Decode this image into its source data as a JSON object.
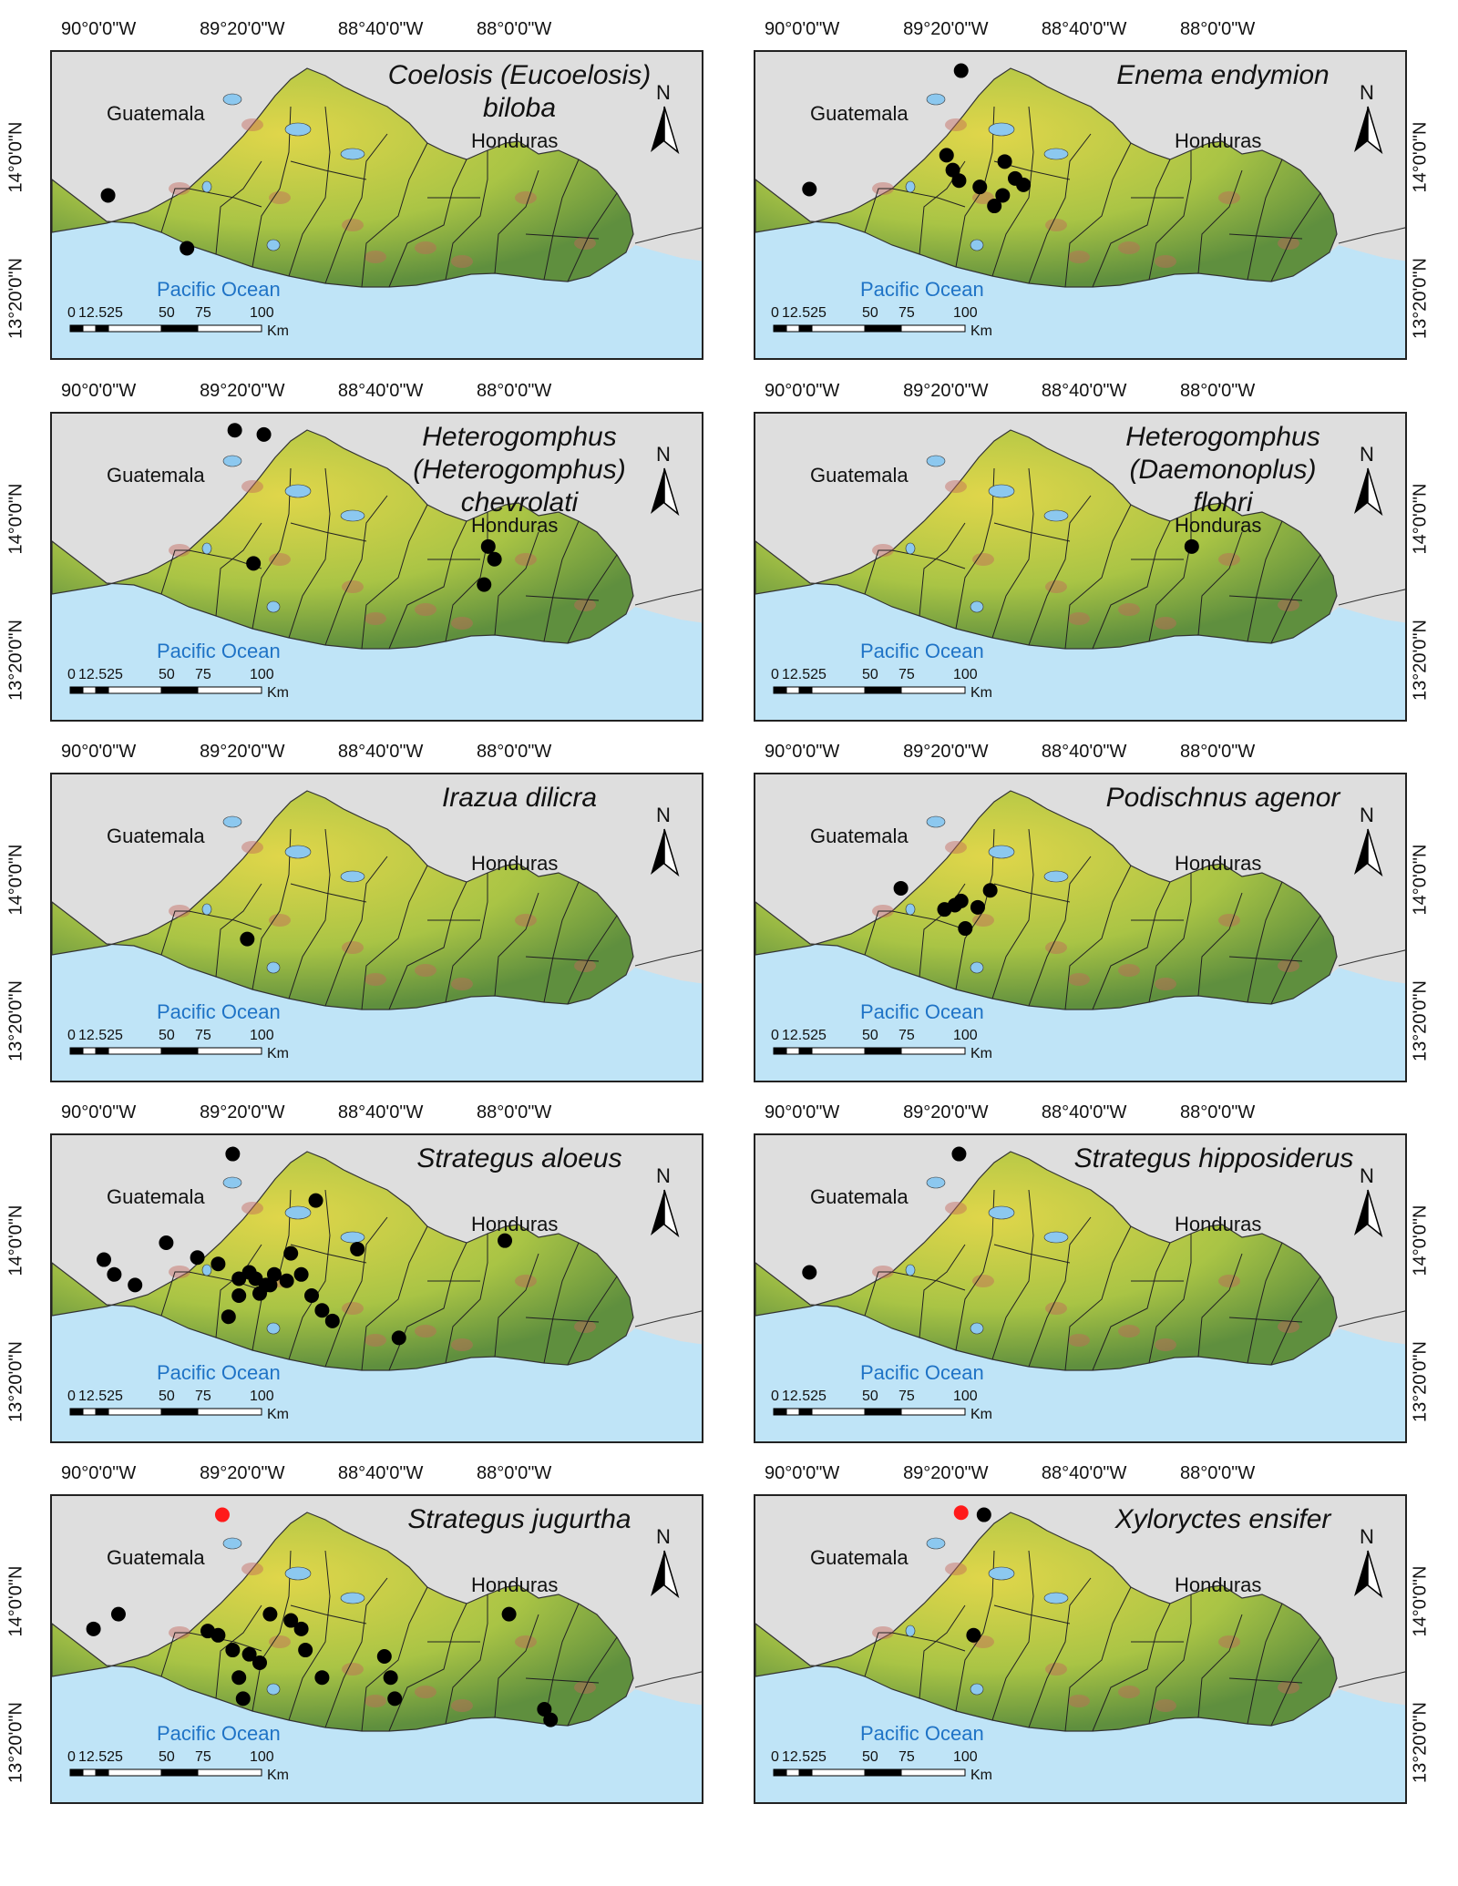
{
  "longitude_labels": [
    "90°0'0\"W",
    "89°20'0\"W",
    "88°40'0\"W",
    "88°0'0\"W"
  ],
  "latitude_labels": [
    "14°0'0\"N",
    "13°20'0\"N"
  ],
  "north_label": "N",
  "ocean_label": "Pacific Ocean",
  "scale": {
    "ticks": [
      "0",
      "12.525",
      "50",
      "75",
      "100"
    ],
    "unit": "Km"
  },
  "colors": {
    "land_low": "#5f8f3e",
    "land_high": "#e0d64a",
    "peak": "#c4665b",
    "ocean": "#bfe4f7",
    "lake": "#8cc8ef",
    "outside": "#dedede",
    "record": "#000000",
    "highlight_record": "#ff1a1a"
  },
  "panels": [
    {
      "title_lines": [
        "Coelosis (Eucoelosis)",
        "biloba"
      ],
      "countries": [
        "Guatemala",
        "Honduras"
      ],
      "records": [
        {
          "lon": -89.98,
          "lat": 13.83
        },
        {
          "lon": -89.6,
          "lat": 13.58
        }
      ]
    },
    {
      "title_lines": [
        "Enema endymion"
      ],
      "countries": [
        "Guatemala",
        "Honduras"
      ],
      "records": [
        {
          "lon": -89.26,
          "lat": 14.42
        },
        {
          "lon": -89.33,
          "lat": 14.02
        },
        {
          "lon": -89.3,
          "lat": 13.95
        },
        {
          "lon": -89.27,
          "lat": 13.9
        },
        {
          "lon": -89.17,
          "lat": 13.87
        },
        {
          "lon": -89.1,
          "lat": 13.78
        },
        {
          "lon": -89.06,
          "lat": 13.83
        },
        {
          "lon": -89.05,
          "lat": 13.99
        },
        {
          "lon": -89.0,
          "lat": 13.91
        },
        {
          "lon": -88.96,
          "lat": 13.88
        },
        {
          "lon": -89.99,
          "lat": 13.86
        }
      ]
    },
    {
      "title_lines": [
        "Heterogomphus",
        "(Heterogomphus)",
        "chevrolati"
      ],
      "countries": [
        "Guatemala",
        "Honduras"
      ],
      "records": [
        {
          "lon": -89.37,
          "lat": 14.43
        },
        {
          "lon": -89.23,
          "lat": 14.41
        },
        {
          "lon": -89.28,
          "lat": 13.8
        },
        {
          "lon": -88.15,
          "lat": 13.88
        },
        {
          "lon": -88.12,
          "lat": 13.82
        },
        {
          "lon": -88.17,
          "lat": 13.7
        }
      ]
    },
    {
      "title_lines": [
        "Heterogomphus",
        "(Daemonoplus)",
        "flohri"
      ],
      "countries": [
        "Guatemala",
        "Honduras"
      ],
      "records": [
        {
          "lon": -88.15,
          "lat": 13.88
        }
      ]
    },
    {
      "title_lines": [
        "Irazua dilicra"
      ],
      "countries": [
        "Guatemala",
        "Honduras"
      ],
      "records": [
        {
          "lon": -89.31,
          "lat": 13.73
        }
      ]
    },
    {
      "title_lines": [
        "Podischnus agenor"
      ],
      "countries": [
        "Guatemala",
        "Honduras"
      ],
      "records": [
        {
          "lon": -89.55,
          "lat": 13.97
        },
        {
          "lon": -89.34,
          "lat": 13.87
        },
        {
          "lon": -89.29,
          "lat": 13.89
        },
        {
          "lon": -89.26,
          "lat": 13.91
        },
        {
          "lon": -89.18,
          "lat": 13.88
        },
        {
          "lon": -89.12,
          "lat": 13.96
        },
        {
          "lon": -89.24,
          "lat": 13.78
        }
      ]
    },
    {
      "title_lines": [
        "Strategus aloeus"
      ],
      "countries": [
        "Guatemala",
        "Honduras"
      ],
      "records": [
        {
          "lon": -89.38,
          "lat": 14.42
        },
        {
          "lon": -89.7,
          "lat": 14.0
        },
        {
          "lon": -90.0,
          "lat": 13.92
        },
        {
          "lon": -89.95,
          "lat": 13.85
        },
        {
          "lon": -89.85,
          "lat": 13.8
        },
        {
          "lon": -89.55,
          "lat": 13.93
        },
        {
          "lon": -89.45,
          "lat": 13.9
        },
        {
          "lon": -89.35,
          "lat": 13.83
        },
        {
          "lon": -89.3,
          "lat": 13.86
        },
        {
          "lon": -89.27,
          "lat": 13.83
        },
        {
          "lon": -89.22,
          "lat": 13.8
        },
        {
          "lon": -89.25,
          "lat": 13.76
        },
        {
          "lon": -89.2,
          "lat": 13.8
        },
        {
          "lon": -89.18,
          "lat": 13.85
        },
        {
          "lon": -89.12,
          "lat": 13.82
        },
        {
          "lon": -89.1,
          "lat": 13.95
        },
        {
          "lon": -89.05,
          "lat": 13.85
        },
        {
          "lon": -89.35,
          "lat": 13.75
        },
        {
          "lon": -89.4,
          "lat": 13.65
        },
        {
          "lon": -89.0,
          "lat": 13.75
        },
        {
          "lon": -88.95,
          "lat": 13.68
        },
        {
          "lon": -88.9,
          "lat": 13.63
        },
        {
          "lon": -88.98,
          "lat": 14.2
        },
        {
          "lon": -88.78,
          "lat": 13.97
        },
        {
          "lon": -88.58,
          "lat": 13.55
        },
        {
          "lon": -88.07,
          "lat": 14.01
        }
      ]
    },
    {
      "title_lines": [
        "Strategus hipposiderus"
      ],
      "countries": [
        "Guatemala",
        "Honduras"
      ],
      "records": [
        {
          "lon": -89.27,
          "lat": 14.42
        },
        {
          "lon": -89.99,
          "lat": 13.86
        }
      ]
    },
    {
      "title_lines": [
        "Strategus jugurtha"
      ],
      "countries": [
        "Guatemala",
        "Honduras"
      ],
      "records": [
        {
          "lon": -89.43,
          "lat": 14.42,
          "highlight": true
        },
        {
          "lon": -89.93,
          "lat": 13.95
        },
        {
          "lon": -90.05,
          "lat": 13.88
        },
        {
          "lon": -89.5,
          "lat": 13.87
        },
        {
          "lon": -89.45,
          "lat": 13.85
        },
        {
          "lon": -89.38,
          "lat": 13.78
        },
        {
          "lon": -89.3,
          "lat": 13.76
        },
        {
          "lon": -89.25,
          "lat": 13.72
        },
        {
          "lon": -89.35,
          "lat": 13.65
        },
        {
          "lon": -89.2,
          "lat": 13.95
        },
        {
          "lon": -89.1,
          "lat": 13.92
        },
        {
          "lon": -89.05,
          "lat": 13.88
        },
        {
          "lon": -89.03,
          "lat": 13.78
        },
        {
          "lon": -88.95,
          "lat": 13.65
        },
        {
          "lon": -89.33,
          "lat": 13.55
        },
        {
          "lon": -88.65,
          "lat": 13.75
        },
        {
          "lon": -88.62,
          "lat": 13.65
        },
        {
          "lon": -88.6,
          "lat": 13.55
        },
        {
          "lon": -88.05,
          "lat": 13.95
        },
        {
          "lon": -87.88,
          "lat": 13.5
        },
        {
          "lon": -87.85,
          "lat": 13.45
        }
      ]
    },
    {
      "title_lines": [
        "Xyloryctes ensifer"
      ],
      "countries": [
        "Guatemala",
        "Honduras"
      ],
      "records": [
        {
          "lon": -89.26,
          "lat": 14.43,
          "highlight": true
        },
        {
          "lon": -89.15,
          "lat": 14.42
        },
        {
          "lon": -89.2,
          "lat": 13.85
        }
      ]
    }
  ]
}
